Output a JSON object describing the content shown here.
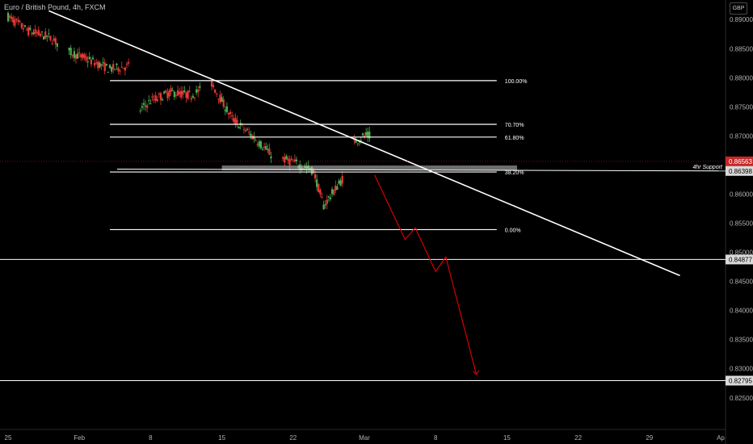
{
  "header": {
    "title": "Euro / British Pound, 4h, FXCM",
    "currency": "GBP"
  },
  "colors": {
    "background": "#000000",
    "up": "#4caf50",
    "down": "#e53935",
    "line": "#ffffff",
    "projection": "#d50000",
    "axis_text": "#b2b2b2",
    "badge_red": "#c62828"
  },
  "chart_data": {
    "type": "candlestick",
    "y_axis": {
      "range": [
        0.8215,
        0.891
      ],
      "ticks": [
        "0.89000",
        "0.88500",
        "0.88000",
        "0.87500",
        "0.87000",
        "0.86500",
        "0.86000",
        "0.85500",
        "0.85000",
        "0.84500",
        "0.84000",
        "0.83500",
        "0.83000",
        "0.82500"
      ]
    },
    "x_axis": {
      "range": [
        "2021-01-25",
        "2021-04-05"
      ],
      "ticks": [
        {
          "date": "2021-01-25",
          "label": "25"
        },
        {
          "date": "2021-02-01",
          "label": "Feb"
        },
        {
          "date": "2021-02-08",
          "label": "8"
        },
        {
          "date": "2021-02-15",
          "label": "15"
        },
        {
          "date": "2021-02-22",
          "label": "22"
        },
        {
          "date": "2021-03-01",
          "label": "Mar"
        },
        {
          "date": "2021-03-08",
          "label": "8"
        },
        {
          "date": "2021-03-15",
          "label": "15"
        },
        {
          "date": "2021-03-22",
          "label": "22"
        },
        {
          "date": "2021-03-29",
          "label": "29"
        },
        {
          "date": "2021-04-05",
          "label": "Ap"
        }
      ]
    },
    "price_path": [
      [
        "2021-01-25",
        0.8905
      ],
      [
        "2021-01-27",
        0.888
      ],
      [
        "2021-01-29",
        0.887
      ],
      [
        "2021-01-31",
        0.8845
      ],
      [
        "2021-02-02",
        0.883
      ],
      [
        "2021-02-04",
        0.8815
      ],
      [
        "2021-02-06",
        0.882
      ],
      [
        "2021-02-07",
        0.8745
      ],
      [
        "2021-02-08",
        0.876
      ],
      [
        "2021-02-10",
        0.8775
      ],
      [
        "2021-02-12",
        0.877
      ],
      [
        "2021-02-14",
        0.879
      ],
      [
        "2021-02-16",
        0.873
      ],
      [
        "2021-02-18",
        0.87
      ],
      [
        "2021-02-20",
        0.8665
      ],
      [
        "2021-02-22",
        0.8655
      ],
      [
        "2021-02-24",
        0.864
      ],
      [
        "2021-02-25",
        0.858
      ],
      [
        "2021-02-26",
        0.8605
      ],
      [
        "2021-02-27",
        0.863
      ],
      [
        "2021-02-28",
        0.869
      ],
      [
        "2021-03-01",
        0.87
      ],
      [
        "2021-03-01",
        0.8656
      ]
    ],
    "fib_levels": [
      {
        "label": "100.00%",
        "price": 0.8795
      },
      {
        "label": "70.70%",
        "price": 0.872
      },
      {
        "label": "61.80%",
        "price": 0.8698
      },
      {
        "label": "38.20%",
        "price": 0.8638
      },
      {
        "label": "0.00%",
        "price": 0.8539
      }
    ],
    "fib_span": [
      "2021-02-04",
      "2021-03-14"
    ],
    "trendline": {
      "from": [
        "2021-01-29",
        0.8915
      ],
      "to": [
        "2021-04-01",
        0.846
      ]
    },
    "support_zone": {
      "label": "4hr Support",
      "price": 0.86398,
      "from": [
        "2021-02-15",
        0.8645
      ],
      "to": [
        "2021-03-16",
        0.864
      ]
    },
    "horizontal_lines": [
      {
        "price": 0.84877,
        "label": "0.84877"
      },
      {
        "price": 0.82795,
        "label": "0.82795"
      }
    ],
    "current_price": {
      "price": 0.86563,
      "label": "0.86563"
    },
    "support_price_label": "0.86398",
    "projection_path": [
      [
        "2021-03-02",
        0.8633
      ],
      [
        "2021-03-05",
        0.8522
      ],
      [
        "2021-03-06",
        0.8542
      ],
      [
        "2021-03-08",
        0.8467
      ],
      [
        "2021-03-09",
        0.8492
      ],
      [
        "2021-03-12",
        0.829
      ]
    ]
  }
}
